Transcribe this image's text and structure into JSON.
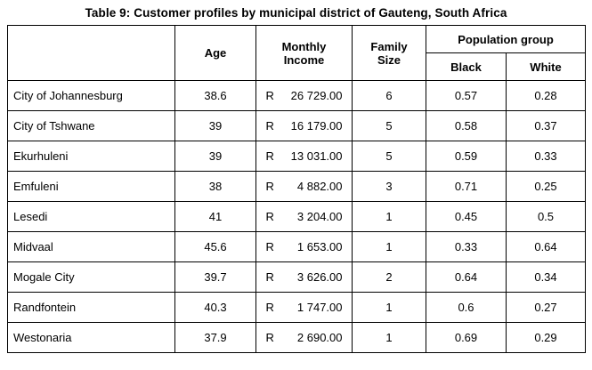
{
  "title": "Table 9: Customer profiles by municipal district of Gauteng, South Africa",
  "table": {
    "headers": {
      "age": "Age",
      "monthly_income": "Monthly Income",
      "family_size": "Family Size",
      "population_group": "Population group",
      "black": "Black",
      "white": "White"
    },
    "rows": [
      {
        "district": "City of Johannesburg",
        "age": "38.6",
        "currency": "R",
        "income": "26 729.00",
        "family_size": "6",
        "black": "0.57",
        "white": "0.28"
      },
      {
        "district": "City of Tshwane",
        "age": "39",
        "currency": "R",
        "income": "16 179.00",
        "family_size": "5",
        "black": "0.58",
        "white": "0.37"
      },
      {
        "district": "Ekurhuleni",
        "age": "39",
        "currency": "R",
        "income": "13 031.00",
        "family_size": "5",
        "black": "0.59",
        "white": "0.33"
      },
      {
        "district": "Emfuleni",
        "age": "38",
        "currency": "R",
        "income": "4 882.00",
        "family_size": "3",
        "black": "0.71",
        "white": "0.25"
      },
      {
        "district": "Lesedi",
        "age": "41",
        "currency": "R",
        "income": "3 204.00",
        "family_size": "1",
        "black": "0.45",
        "white": "0.5"
      },
      {
        "district": "Midvaal",
        "age": "45.6",
        "currency": "R",
        "income": "1 653.00",
        "family_size": "1",
        "black": "0.33",
        "white": "0.64"
      },
      {
        "district": "Mogale City",
        "age": "39.7",
        "currency": "R",
        "income": "3 626.00",
        "family_size": "2",
        "black": "0.64",
        "white": "0.34"
      },
      {
        "district": "Randfontein",
        "age": "40.3",
        "currency": "R",
        "income": "1 747.00",
        "family_size": "1",
        "black": "0.6",
        "white": "0.27"
      },
      {
        "district": "Westonaria",
        "age": "37.9",
        "currency": "R",
        "income": "2 690.00",
        "family_size": "1",
        "black": "0.69",
        "white": "0.29"
      }
    ]
  }
}
